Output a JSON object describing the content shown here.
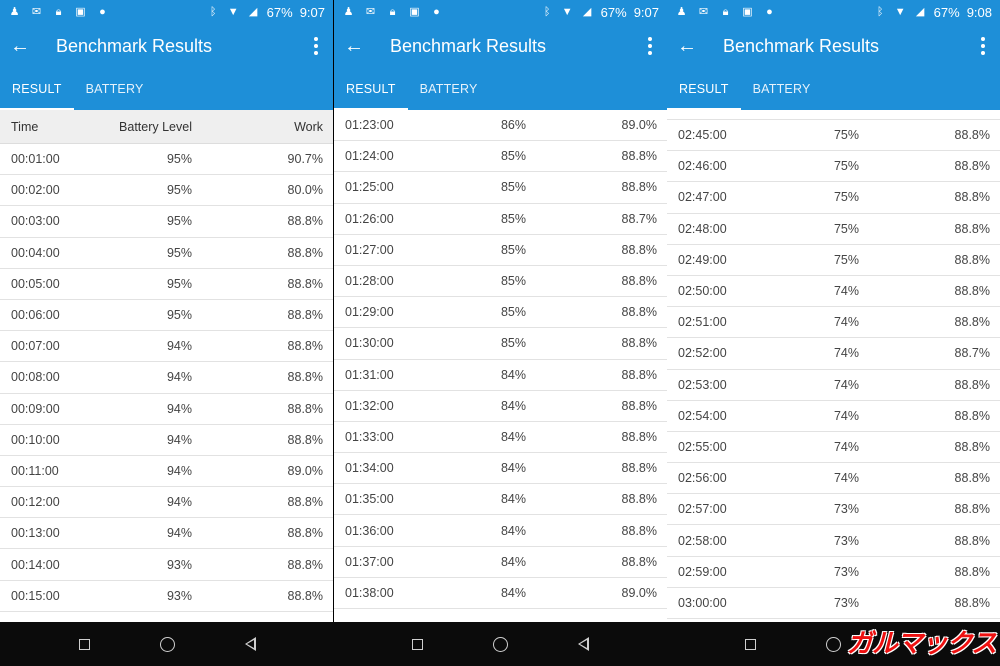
{
  "panels": [
    {
      "status": {
        "battery": "67%",
        "time": "9:07"
      },
      "appbar": {
        "title": "Benchmark Results"
      },
      "tabs": [
        "RESULT",
        "BATTERY"
      ],
      "header": {
        "time": "Time",
        "battery": "Battery Level",
        "work": "Work"
      },
      "rows": [
        [
          "00:01:00",
          "95%",
          "90.7%"
        ],
        [
          "00:02:00",
          "95%",
          "80.0%"
        ],
        [
          "00:03:00",
          "95%",
          "88.8%"
        ],
        [
          "00:04:00",
          "95%",
          "88.8%"
        ],
        [
          "00:05:00",
          "95%",
          "88.8%"
        ],
        [
          "00:06:00",
          "95%",
          "88.8%"
        ],
        [
          "00:07:00",
          "94%",
          "88.8%"
        ],
        [
          "00:08:00",
          "94%",
          "88.8%"
        ],
        [
          "00:09:00",
          "94%",
          "88.8%"
        ],
        [
          "00:10:00",
          "94%",
          "88.8%"
        ],
        [
          "00:11:00",
          "94%",
          "89.0%"
        ],
        [
          "00:12:00",
          "94%",
          "88.8%"
        ],
        [
          "00:13:00",
          "94%",
          "88.8%"
        ],
        [
          "00:14:00",
          "93%",
          "88.8%"
        ],
        [
          "00:15:00",
          "93%",
          "88.8%"
        ]
      ]
    },
    {
      "status": {
        "battery": "67%",
        "time": "9:07"
      },
      "appbar": {
        "title": "Benchmark Results"
      },
      "tabs": [
        "RESULT",
        "BATTERY"
      ],
      "rows": [
        [
          "01:23:00",
          "86%",
          "89.0%"
        ],
        [
          "01:24:00",
          "85%",
          "88.8%"
        ],
        [
          "01:25:00",
          "85%",
          "88.8%"
        ],
        [
          "01:26:00",
          "85%",
          "88.7%"
        ],
        [
          "01:27:00",
          "85%",
          "88.8%"
        ],
        [
          "01:28:00",
          "85%",
          "88.8%"
        ],
        [
          "01:29:00",
          "85%",
          "88.8%"
        ],
        [
          "01:30:00",
          "85%",
          "88.8%"
        ],
        [
          "01:31:00",
          "84%",
          "88.8%"
        ],
        [
          "01:32:00",
          "84%",
          "88.8%"
        ],
        [
          "01:33:00",
          "84%",
          "88.8%"
        ],
        [
          "01:34:00",
          "84%",
          "88.8%"
        ],
        [
          "01:35:00",
          "84%",
          "88.8%"
        ],
        [
          "01:36:00",
          "84%",
          "88.8%"
        ],
        [
          "01:37:00",
          "84%",
          "88.8%"
        ],
        [
          "01:38:00",
          "84%",
          "89.0%"
        ]
      ]
    },
    {
      "status": {
        "battery": "67%",
        "time": "9:08"
      },
      "appbar": {
        "title": "Benchmark Results"
      },
      "tabs": [
        "RESULT",
        "BATTERY"
      ],
      "rows": [
        [
          "02:45:00",
          "75%",
          "88.8%"
        ],
        [
          "02:46:00",
          "75%",
          "88.8%"
        ],
        [
          "02:47:00",
          "75%",
          "88.8%"
        ],
        [
          "02:48:00",
          "75%",
          "88.8%"
        ],
        [
          "02:49:00",
          "75%",
          "88.8%"
        ],
        [
          "02:50:00",
          "74%",
          "88.8%"
        ],
        [
          "02:51:00",
          "74%",
          "88.8%"
        ],
        [
          "02:52:00",
          "74%",
          "88.7%"
        ],
        [
          "02:53:00",
          "74%",
          "88.8%"
        ],
        [
          "02:54:00",
          "74%",
          "88.8%"
        ],
        [
          "02:55:00",
          "74%",
          "88.8%"
        ],
        [
          "02:56:00",
          "74%",
          "88.8%"
        ],
        [
          "02:57:00",
          "73%",
          "88.8%"
        ],
        [
          "02:58:00",
          "73%",
          "88.8%"
        ],
        [
          "02:59:00",
          "73%",
          "88.8%"
        ],
        [
          "03:00:00",
          "73%",
          "88.8%"
        ]
      ]
    }
  ],
  "watermark": "ガルマックス",
  "colors": {
    "primary": "#1e8fd8",
    "header_bg": "#efefef",
    "navbar": "#0b0b0b"
  }
}
